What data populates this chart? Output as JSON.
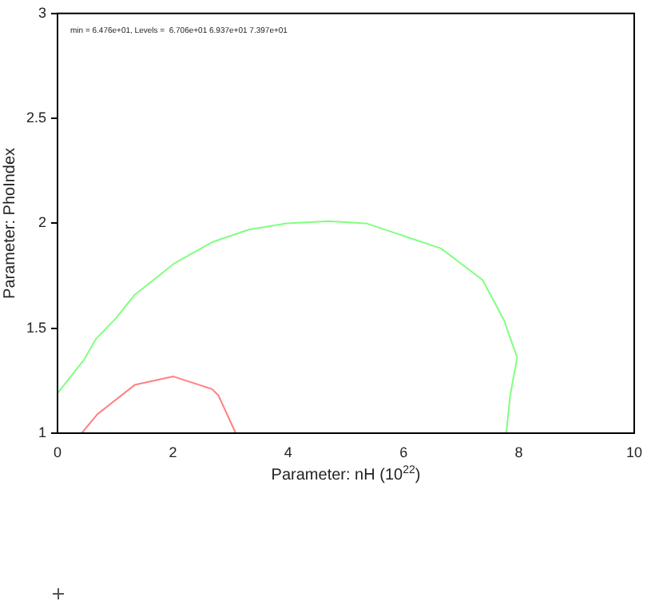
{
  "chart_data": {
    "type": "line",
    "xlabel": "Parameter: nH (10$^{22}$)",
    "ylabel": "Parameter: PhoIndex",
    "annotations": [
      "min = 6.476e+01, Levels =  6.706e+01 6.937e+01 7.397e+01"
    ],
    "xlim": [
      0,
      10
    ],
    "xticks": [
      0,
      2,
      4,
      6,
      8,
      10
    ],
    "ylim": [
      1,
      3
    ],
    "yticks": [
      1,
      1.5,
      2,
      2.5,
      3
    ],
    "grid": false,
    "legend": false,
    "marker": "none",
    "line_style": "solid",
    "series": [
      {
        "color": "#80ff80",
        "x": [
          0,
          0.46,
          0.67,
          1.02,
          1.34,
          1.71,
          2.03,
          2.68,
          3.32,
          3.97,
          4.71,
          5.35,
          6.0,
          6.65,
          7.37,
          7.74,
          7.97,
          7.85,
          7.78
        ],
        "values": [
          1.19,
          1.35,
          1.45,
          1.55,
          1.66,
          1.74,
          1.81,
          1.91,
          1.97,
          2.0,
          2.01,
          2.0,
          1.94,
          1.88,
          1.73,
          1.54,
          1.36,
          1.18,
          1.0
        ]
      },
      {
        "color": "#ff8080",
        "x": [
          0.42,
          0.69,
          1.34,
          2.01,
          2.68,
          2.79,
          3.09
        ],
        "values": [
          1.0,
          1.09,
          1.23,
          1.27,
          1.21,
          1.18,
          1.0
        ]
      }
    ]
  }
}
